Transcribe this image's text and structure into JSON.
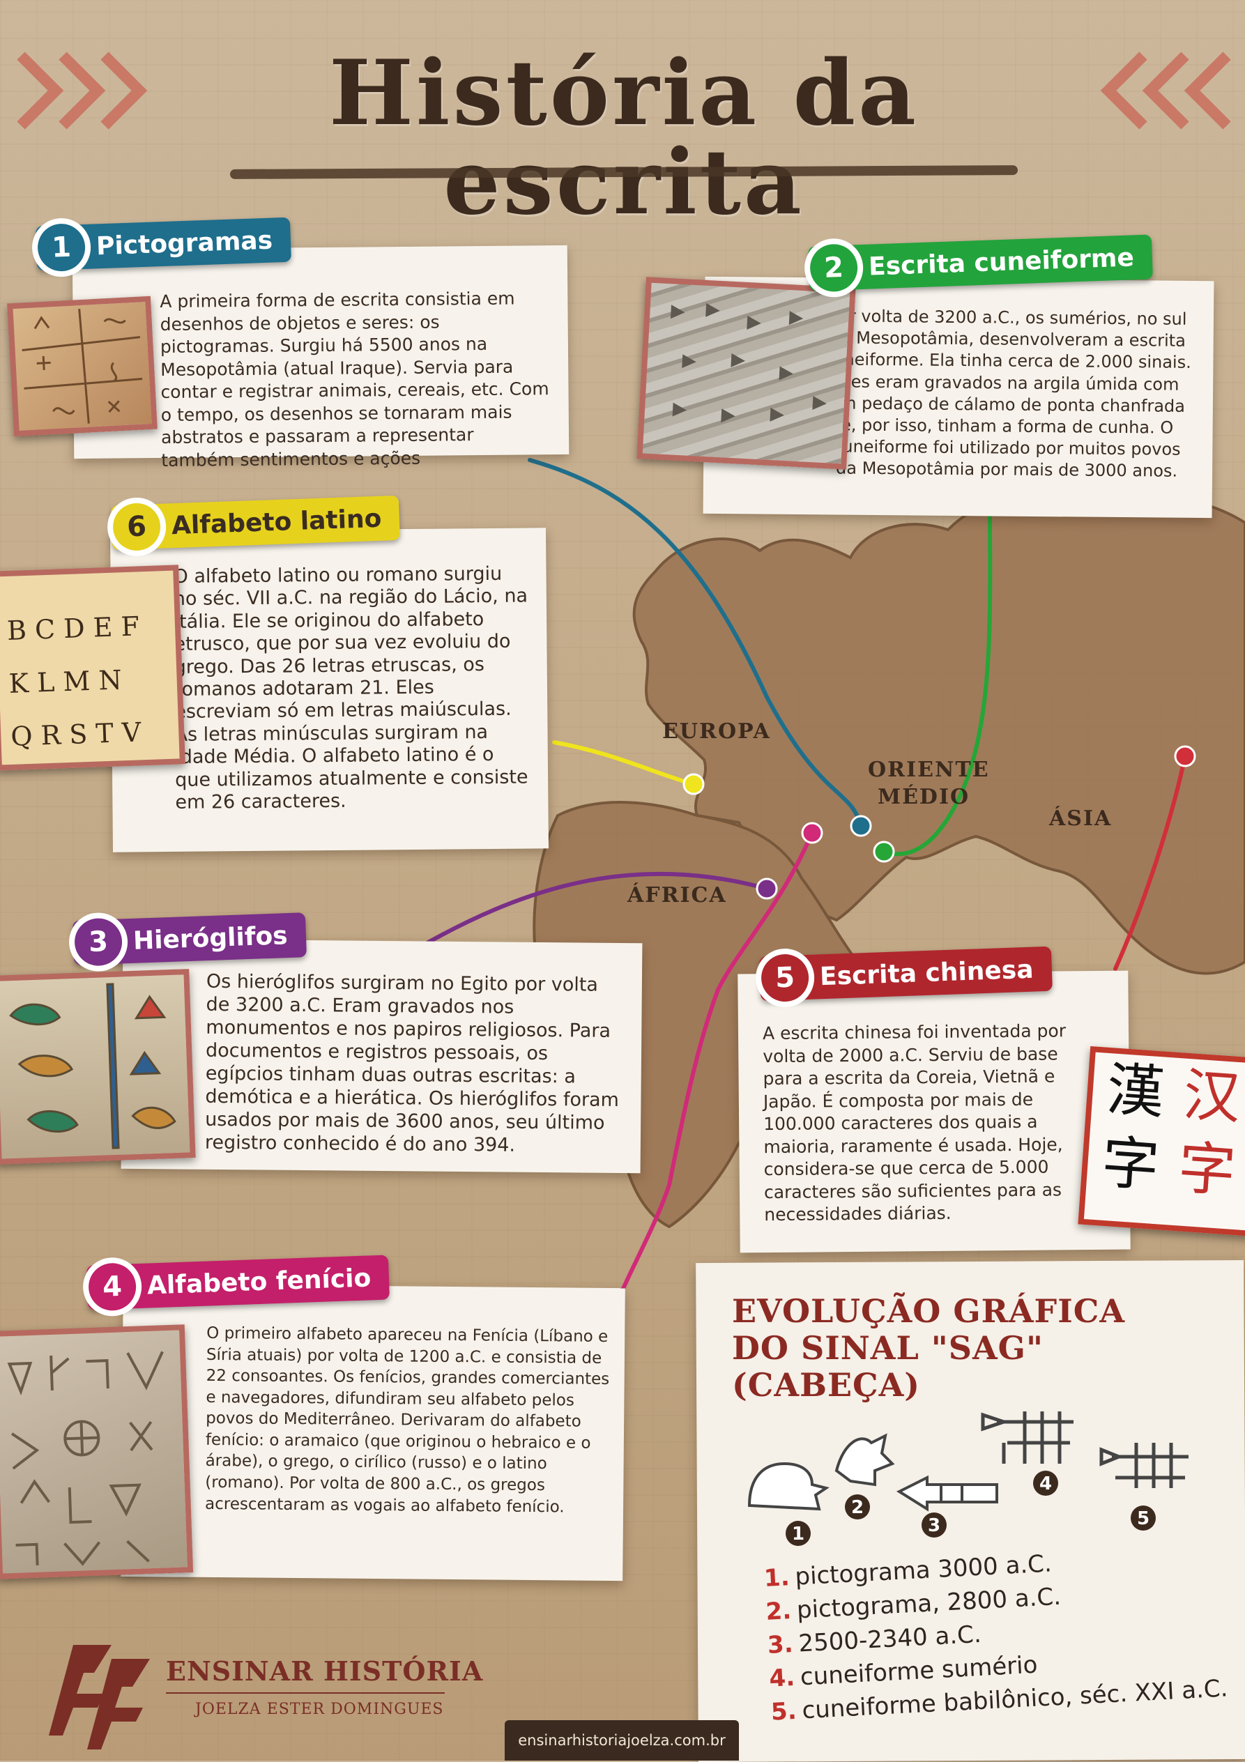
{
  "title": "História da escrita",
  "colors": {
    "section1": "#1e6e8c",
    "section2": "#23a33c",
    "section3": "#7a2f88",
    "section4": "#c41f6a",
    "section5": "#b0262d",
    "section6": "#e6d21c",
    "title": "#3b2a1d",
    "evolution_title": "#8b2a22"
  },
  "sections": [
    {
      "number": "1",
      "title": "Pictogramas",
      "text": "A primeira forma de escrita consistia em desenhos de objetos e seres: os pictogramas. Surgiu há 5500 anos na Mesopotâmia (atual Iraque). Servia para contar e registrar animais, cereais, etc. Com o tempo, os desenhos se tornaram mais abstratos e passaram a representar também sentimentos e ações"
    },
    {
      "number": "2",
      "title": "Escrita cuneiforme",
      "text": "Por volta de 3200 a.C., os sumérios, no sul da Mesopotâmia, desenvolveram a escrita cuneiforme. Ela tinha cerca de 2.000 sinais. Eles eram gravados na argila úmida com um pedaço de cálamo de ponta chanfrada e, por isso, tinham a forma de cunha. O cuneiforme foi utilizado por muitos povos da Mesopotâmia por mais de 3000 anos."
    },
    {
      "number": "3",
      "title": "Hieróglifos",
      "text": "Os hieróglifos surgiram no Egito por volta de 3200 a.C. Eram gravados nos monumentos e nos papiros religiosos. Para documentos e registros pessoais, os egípcios tinham duas outras escritas: a demótica e a hierática. Os hieróglifos foram usados por mais de 3600 anos, seu último registro conhecido é do ano 394."
    },
    {
      "number": "4",
      "title": "Alfabeto fenício",
      "text": "O primeiro alfabeto apareceu na Fenícia (Líbano e Síria atuais) por volta de 1200 a.C. e consistia de 22 consoantes. Os fenícios, grandes comerciantes e navegadores, difundiram seu alfabeto pelos povos do Mediterrâneo. Derivaram do alfabeto fenício: o aramaico (que originou o hebraico e o árabe), o grego, o cirílico (russo) e o latino (romano). Por volta de 800 a.C., os gregos acrescentaram as vogais ao alfabeto fenício."
    },
    {
      "number": "5",
      "title": "Escrita chinesa",
      "text": "A escrita chinesa foi inventada por volta de 2000 a.C. Serviu de base para a escrita da Coreia, Vietnã e Japão. É composta por mais de 100.000 caracteres dos quais a maioria, raramente é usada. Hoje, considera-se que cerca de 5.000 caracteres são suficientes para as necessidades diárias."
    },
    {
      "number": "6",
      "title": "Alfabeto latino",
      "text": "O alfabeto latino ou romano surgiu no séc. VII a.C. na região do Lácio, na Itália. Ele se originou do alfabeto etrusco, que por sua vez evoluiu do grego. Das 26 letras etruscas, os romanos adotaram 21. Eles escreviam só em letras maiúsculas. As letras minúsculas surgiram na Idade Média. O alfabeto latino é o que utilizamos atualmente e consiste em 26 caracteres."
    }
  ],
  "map_labels": {
    "europe": "EUROPA",
    "middle_east": "ORIENTE MÉDIO",
    "asia": "ÁSIA",
    "africa": "ÁFRICA"
  },
  "latin_photo_letters": [
    "B C D E F",
    "K L M N",
    "Q R S T V"
  ],
  "chinese_characters": {
    "traditional_1": "漢",
    "traditional_2": "字",
    "simplified_1": "汉",
    "simplified_2": "字"
  },
  "evolution": {
    "title": "EVOLUÇÃO GRÁFICA DO SINAL \"SAG\" (CABEÇA)",
    "stage_numbers": [
      "1",
      "2",
      "3",
      "4",
      "5"
    ],
    "list": [
      {
        "number": "1.",
        "text": "pictograma 3000 a.C."
      },
      {
        "number": "2.",
        "text": "pictograma, 2800 a.C."
      },
      {
        "number": "3.",
        "text": "2500-2340 a.C."
      },
      {
        "number": "4.",
        "text": "cuneiforme sumério"
      },
      {
        "number": "5.",
        "text": "cuneiforme babilônico, séc. XXI a.C."
      }
    ]
  },
  "footer": {
    "brand": "ENSINAR HISTÓRIA",
    "author": "JOELZA ESTER DOMINGUES",
    "url": "ensinarhistoriajoelza.com.br"
  }
}
